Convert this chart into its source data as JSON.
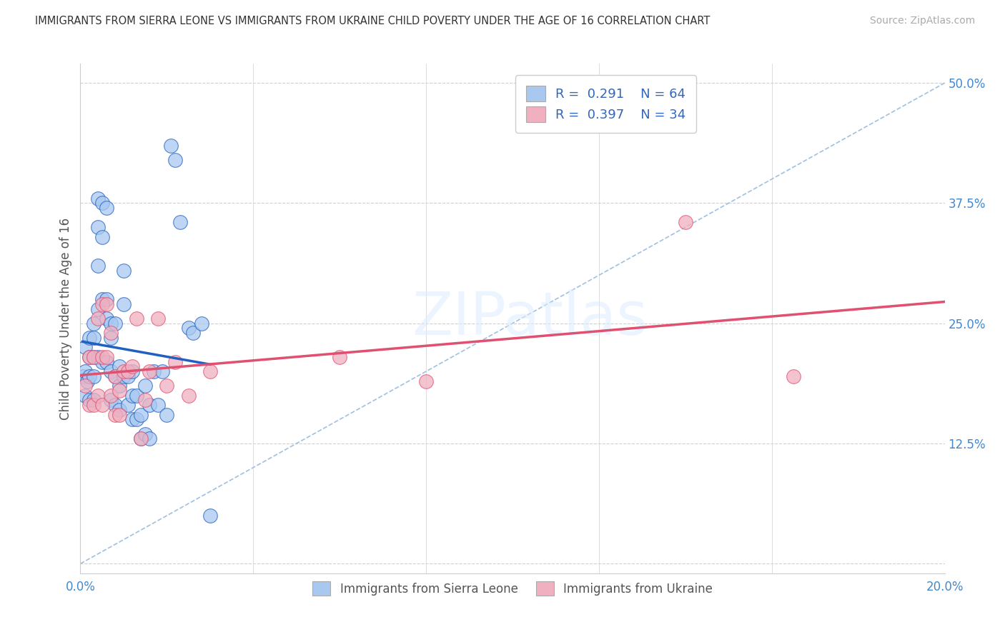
{
  "title": "IMMIGRANTS FROM SIERRA LEONE VS IMMIGRANTS FROM UKRAINE CHILD POVERTY UNDER THE AGE OF 16 CORRELATION CHART",
  "source": "Source: ZipAtlas.com",
  "ylabel": "Child Poverty Under the Age of 16",
  "yticks": [
    0.0,
    0.125,
    0.25,
    0.375,
    0.5
  ],
  "ytick_labels": [
    "",
    "12.5%",
    "25.0%",
    "37.5%",
    "50.0%"
  ],
  "legend_label_sl": "Immigrants from Sierra Leone",
  "legend_label_uk": "Immigrants from Ukraine",
  "R_sl": "0.291",
  "N_sl": "64",
  "R_uk": "0.397",
  "N_uk": "34",
  "color_sl": "#a8c8f0",
  "color_uk": "#f0b0c0",
  "color_sl_line": "#2060c0",
  "color_uk_line": "#e05070",
  "color_diag": "#a0c0e0",
  "background": "#ffffff",
  "grid_color": "#d0d0d0",
  "xlim": [
    0.0,
    0.2
  ],
  "ylim": [
    -0.01,
    0.52
  ],
  "sl_x": [
    0.0005,
    0.001,
    0.001,
    0.001,
    0.0015,
    0.002,
    0.002,
    0.002,
    0.002,
    0.003,
    0.003,
    0.003,
    0.003,
    0.003,
    0.004,
    0.004,
    0.004,
    0.004,
    0.004,
    0.005,
    0.005,
    0.005,
    0.005,
    0.006,
    0.006,
    0.006,
    0.006,
    0.007,
    0.007,
    0.007,
    0.007,
    0.008,
    0.008,
    0.008,
    0.009,
    0.009,
    0.009,
    0.01,
    0.01,
    0.01,
    0.011,
    0.011,
    0.012,
    0.012,
    0.012,
    0.013,
    0.013,
    0.014,
    0.014,
    0.015,
    0.015,
    0.016,
    0.016,
    0.017,
    0.018,
    0.019,
    0.02,
    0.021,
    0.022,
    0.023,
    0.025,
    0.026,
    0.028,
    0.03
  ],
  "sl_y": [
    0.195,
    0.225,
    0.2,
    0.175,
    0.19,
    0.235,
    0.215,
    0.195,
    0.17,
    0.25,
    0.235,
    0.215,
    0.195,
    0.17,
    0.38,
    0.35,
    0.31,
    0.265,
    0.215,
    0.375,
    0.34,
    0.275,
    0.21,
    0.37,
    0.275,
    0.255,
    0.21,
    0.25,
    0.235,
    0.2,
    0.17,
    0.25,
    0.195,
    0.165,
    0.205,
    0.185,
    0.16,
    0.305,
    0.27,
    0.195,
    0.195,
    0.165,
    0.2,
    0.175,
    0.15,
    0.175,
    0.15,
    0.155,
    0.13,
    0.185,
    0.135,
    0.165,
    0.13,
    0.2,
    0.165,
    0.2,
    0.155,
    0.435,
    0.42,
    0.355,
    0.245,
    0.24,
    0.25,
    0.05
  ],
  "uk_x": [
    0.001,
    0.002,
    0.002,
    0.003,
    0.003,
    0.004,
    0.004,
    0.005,
    0.005,
    0.005,
    0.006,
    0.006,
    0.007,
    0.007,
    0.008,
    0.008,
    0.009,
    0.009,
    0.01,
    0.011,
    0.012,
    0.013,
    0.014,
    0.015,
    0.016,
    0.018,
    0.02,
    0.022,
    0.025,
    0.03,
    0.06,
    0.08,
    0.14,
    0.165
  ],
  "uk_y": [
    0.185,
    0.215,
    0.165,
    0.215,
    0.165,
    0.255,
    0.175,
    0.27,
    0.215,
    0.165,
    0.27,
    0.215,
    0.24,
    0.175,
    0.195,
    0.155,
    0.18,
    0.155,
    0.2,
    0.2,
    0.205,
    0.255,
    0.13,
    0.17,
    0.2,
    0.255,
    0.185,
    0.21,
    0.175,
    0.2,
    0.215,
    0.19,
    0.355,
    0.195
  ]
}
